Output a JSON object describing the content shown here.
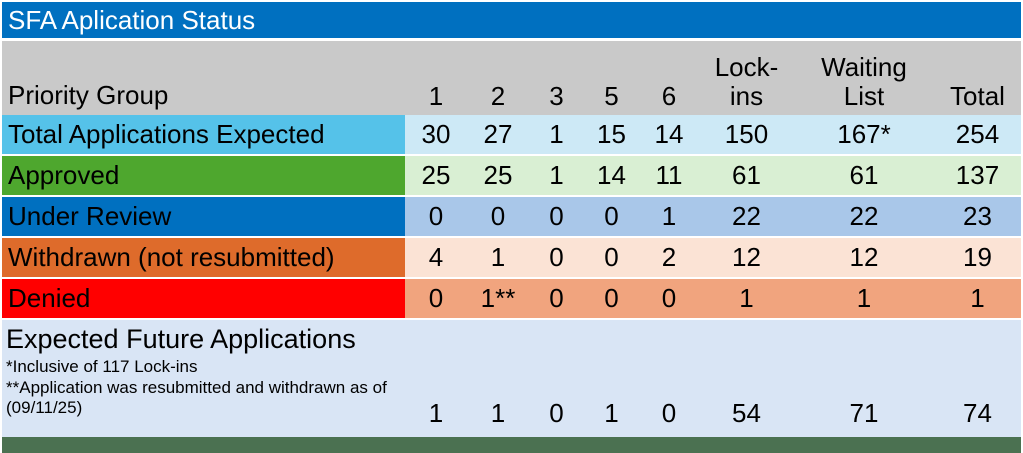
{
  "title": "SFA Aplication Status",
  "colors": {
    "title_bar": "#0070C0",
    "header_bg": "#C9C9C9",
    "footer_bg": "#D9E5F5",
    "bottom_bar": "#4B7151"
  },
  "header": {
    "label": "Priority Group",
    "columns": [
      "1",
      "2",
      "3",
      "5",
      "6",
      "Lock-\nins",
      "Waiting\nList",
      "Total"
    ]
  },
  "rows": [
    {
      "label": "Total Applications Expected",
      "label_bg": "#55C2E9",
      "data_bg": "#CDE9F6",
      "values": [
        "30",
        "27",
        "1",
        "15",
        "14",
        "150",
        "167*",
        "254"
      ]
    },
    {
      "label": "Approved",
      "label_bg": "#4EA72E",
      "data_bg": "#D9EFD3",
      "values": [
        "25",
        "25",
        "1",
        "14",
        "11",
        "61",
        "61",
        "137"
      ]
    },
    {
      "label": "Under Review",
      "label_bg": "#0070C0",
      "data_bg": "#A9C7E9",
      "values": [
        "0",
        "0",
        "0",
        "0",
        "1",
        "22",
        "22",
        "23"
      ]
    },
    {
      "label": "Withdrawn (not resubmitted)",
      "label_bg": "#DE6B2B",
      "data_bg": "#FBE3D5",
      "values": [
        "4",
        "1",
        "0",
        "0",
        "2",
        "12",
        "12",
        "19"
      ]
    },
    {
      "label": "Denied",
      "label_bg": "#FF0000",
      "data_bg": "#F1A47E",
      "values": [
        "0",
        "1**",
        "0",
        "0",
        "0",
        "1",
        "1",
        "1"
      ]
    }
  ],
  "footer": {
    "label": "Expected Future Applications",
    "footnote1": "*Inclusive of 117 Lock-ins",
    "footnote2": "**Application was resubmitted and withdrawn as of (09/11/25)",
    "values": [
      "1",
      "1",
      "0",
      "1",
      "0",
      "54",
      "71",
      "74"
    ]
  },
  "chart_data": {
    "type": "table",
    "title": "SFA Aplication Status",
    "columns": [
      "Priority Group",
      "1",
      "2",
      "3",
      "5",
      "6",
      "Lock-ins",
      "Waiting List",
      "Total"
    ],
    "rows": [
      [
        "Total Applications Expected",
        30,
        27,
        1,
        15,
        14,
        150,
        "167*",
        254
      ],
      [
        "Approved",
        25,
        25,
        1,
        14,
        11,
        61,
        61,
        137
      ],
      [
        "Under Review",
        0,
        0,
        0,
        0,
        1,
        22,
        22,
        23
      ],
      [
        "Withdrawn (not resubmitted)",
        4,
        1,
        0,
        0,
        2,
        12,
        12,
        19
      ],
      [
        "Denied",
        0,
        "1**",
        0,
        0,
        0,
        1,
        1,
        1
      ],
      [
        "Expected Future Applications",
        1,
        1,
        0,
        1,
        0,
        54,
        71,
        74
      ]
    ],
    "footnotes": [
      "*Inclusive of 117 Lock-ins",
      "**Application was resubmitted and withdrawn as of (09/11/25)"
    ]
  }
}
